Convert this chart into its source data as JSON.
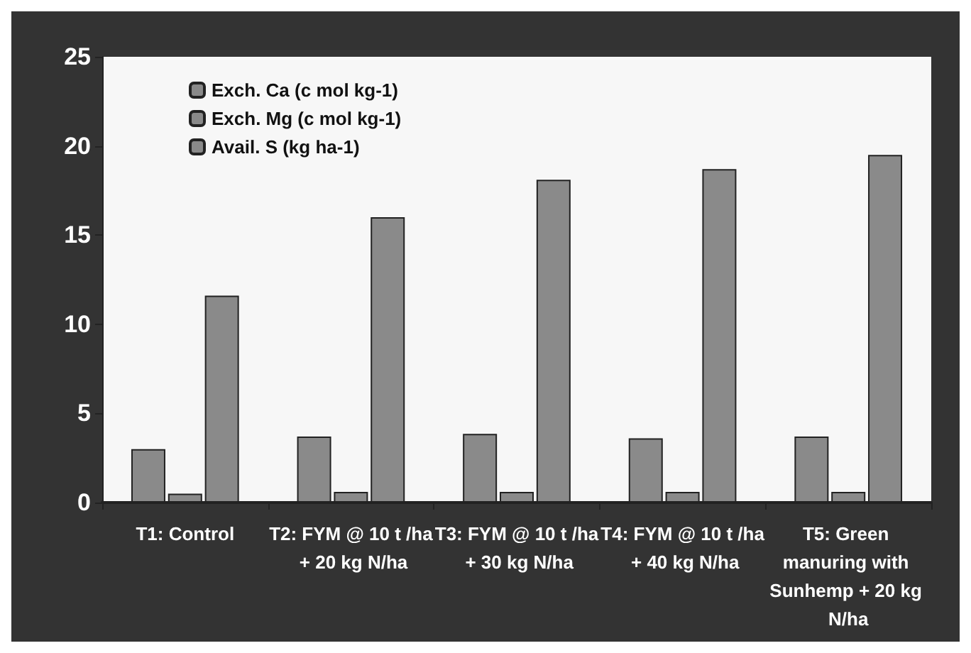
{
  "chart_data": {
    "type": "bar",
    "categories": [
      "T1: Control",
      "T2: FYM @ 10 t /ha + 20 kg N/ha",
      "T3: FYM @ 10 t /ha + 30 kg N/ha",
      "T4: FYM @ 10 t /ha + 40 kg N/ha",
      "T5: Green manuring with Sunhemp + 20 kg N/ha"
    ],
    "series": [
      {
        "name": "Exch. Ca (c mol kg-1)",
        "color": "#8a8a8a",
        "values": [
          3.0,
          3.7,
          3.85,
          3.6,
          3.7
        ]
      },
      {
        "name": "Exch. Mg (c mol kg-1)",
        "color": "#8a8a8a",
        "values": [
          0.5,
          0.6,
          0.6,
          0.6,
          0.6
        ]
      },
      {
        "name": "Avail. S (kg ha-1)",
        "color": "#8a8a8a",
        "values": [
          11.6,
          16.0,
          18.1,
          18.7,
          19.5
        ]
      }
    ],
    "ylim": [
      0,
      25
    ],
    "yticks": [
      0,
      5,
      10,
      15,
      20,
      25
    ],
    "grid": false,
    "legend": "top left"
  }
}
